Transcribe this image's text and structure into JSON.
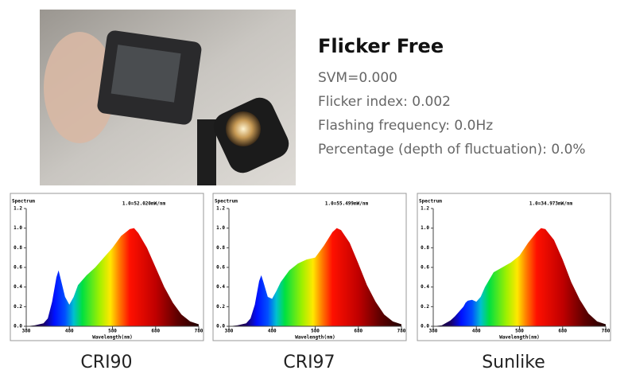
{
  "header": {
    "title": "Flicker Free",
    "lines": [
      "SVM=0.000",
      "Flicker index: 0.002",
      "Flashing frequency: 0.0Hz",
      "Percentage (depth of fluctuation): 0.0%"
    ]
  },
  "chart_data": [
    {
      "type": "area",
      "title": "Spectrum",
      "annotation": "1.0=52.020mW/nm",
      "x_label": "Wavelength(nm)",
      "caption": "CRI90",
      "x": [
        380,
        400,
        420,
        430,
        440,
        450,
        455,
        460,
        470,
        480,
        490,
        500,
        520,
        540,
        560,
        580,
        600,
        620,
        630,
        640,
        660,
        680,
        700,
        720,
        740,
        760,
        780
      ],
      "values": [
        0,
        0.01,
        0.03,
        0.08,
        0.25,
        0.5,
        0.57,
        0.48,
        0.3,
        0.22,
        0.3,
        0.42,
        0.52,
        0.6,
        0.7,
        0.8,
        0.92,
        0.99,
        1.0,
        0.95,
        0.8,
        0.6,
        0.4,
        0.24,
        0.12,
        0.05,
        0.02
      ],
      "xlim": [
        380,
        780
      ],
      "xticks": [
        380,
        480,
        580,
        680,
        780
      ],
      "ylim": [
        0,
        1.2
      ],
      "yticks": [
        {
          "value": 0,
          "label": "0.0"
        },
        0.2,
        0.4,
        0.6,
        0.8,
        {
          "value": 1,
          "label": "1.0"
        },
        1.2
      ]
    },
    {
      "type": "area",
      "title": "Spectrum",
      "annotation": "1.0=55.499mW/nm",
      "x_label": "Wavelength(nm)",
      "caption": "CRI97",
      "x": [
        380,
        400,
        420,
        430,
        440,
        450,
        455,
        460,
        470,
        480,
        490,
        500,
        520,
        540,
        560,
        580,
        600,
        620,
        630,
        640,
        660,
        680,
        700,
        720,
        740,
        760,
        780
      ],
      "values": [
        0,
        0.01,
        0.03,
        0.08,
        0.22,
        0.46,
        0.52,
        0.45,
        0.3,
        0.28,
        0.36,
        0.45,
        0.57,
        0.64,
        0.68,
        0.7,
        0.82,
        0.96,
        1.0,
        0.98,
        0.85,
        0.64,
        0.42,
        0.25,
        0.12,
        0.05,
        0.02
      ],
      "xlim": [
        380,
        780
      ],
      "xticks": [
        380,
        480,
        580,
        680,
        780
      ],
      "ylim": [
        0,
        1.2
      ],
      "yticks": [
        {
          "value": 0,
          "label": "0.0"
        },
        0.2,
        0.4,
        0.6,
        0.8,
        {
          "value": 1,
          "label": "1.0"
        },
        1.2
      ]
    },
    {
      "type": "area",
      "title": "Spectrum",
      "annotation": "1.0=34.973mW/nm",
      "x_label": "Wavelength(nm)",
      "caption": "Sunlike",
      "x": [
        380,
        400,
        420,
        430,
        440,
        450,
        455,
        460,
        470,
        480,
        490,
        500,
        520,
        540,
        560,
        580,
        600,
        620,
        630,
        640,
        660,
        680,
        700,
        720,
        740,
        760,
        780
      ],
      "values": [
        0,
        0.01,
        0.06,
        0.1,
        0.15,
        0.2,
        0.24,
        0.26,
        0.27,
        0.25,
        0.3,
        0.4,
        0.55,
        0.6,
        0.65,
        0.72,
        0.85,
        0.96,
        1.0,
        0.99,
        0.88,
        0.68,
        0.45,
        0.27,
        0.13,
        0.05,
        0.02
      ],
      "xlim": [
        380,
        780
      ],
      "xticks": [
        380,
        480,
        580,
        680,
        780
      ],
      "ylim": [
        0,
        1.2
      ],
      "yticks": [
        {
          "value": 0,
          "label": "0.0"
        },
        0.2,
        0.4,
        0.6,
        0.8,
        {
          "value": 1,
          "label": "1.0"
        },
        1.2
      ]
    }
  ]
}
